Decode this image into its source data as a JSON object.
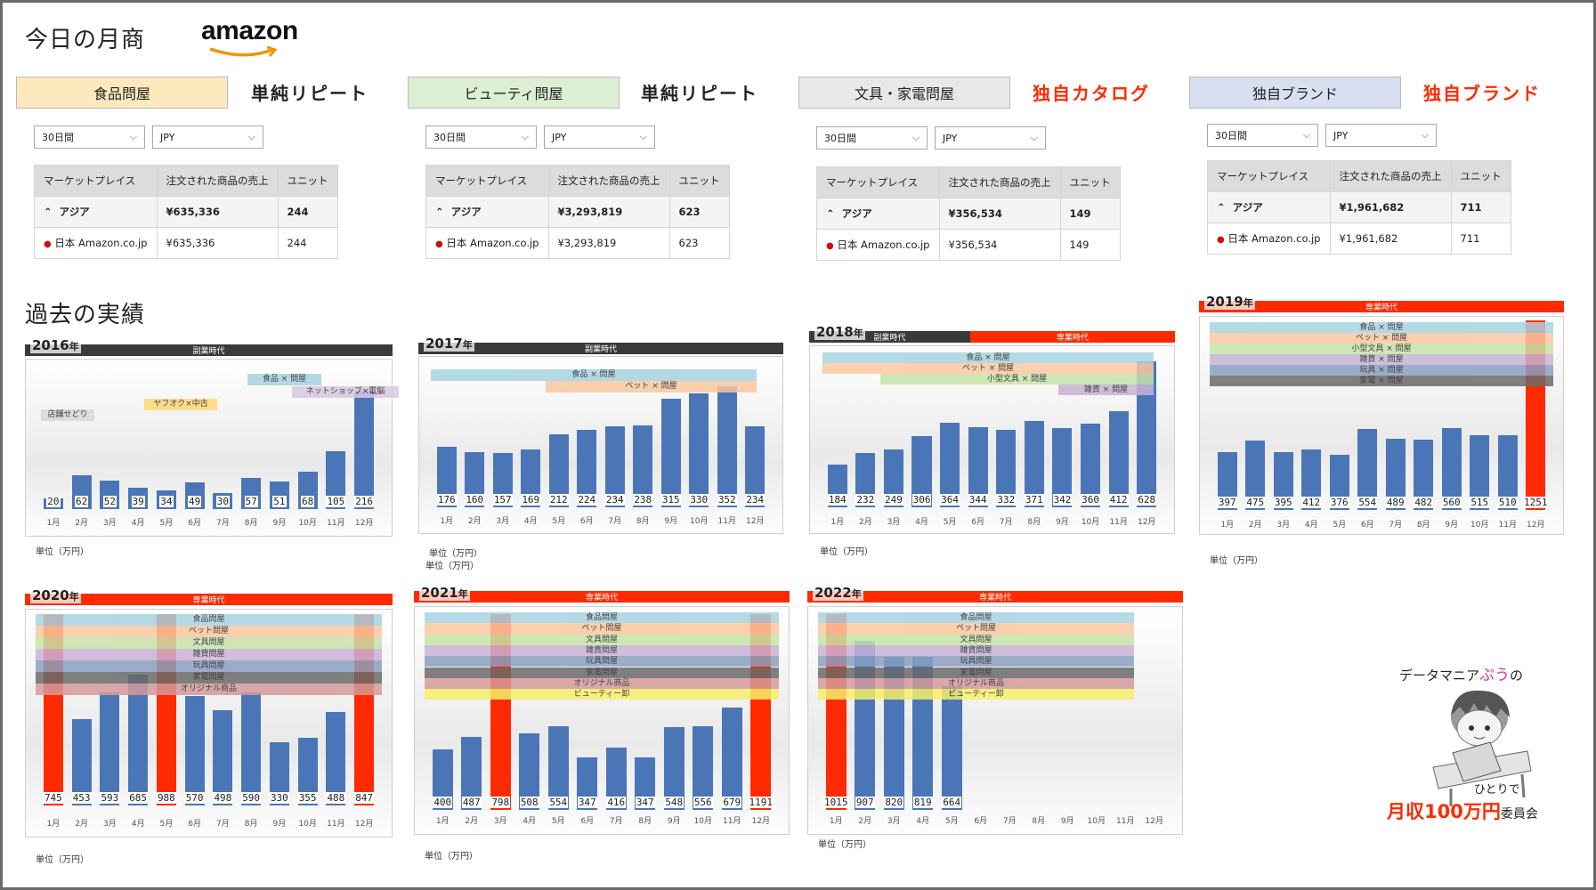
{
  "page": {
    "title": "今日の月商",
    "logo": "amazon",
    "past_title": "過去の実績"
  },
  "shops": [
    {
      "name": "食品問屋",
      "kind": "単純リピート",
      "kind_color": "#222222",
      "bg": "#fde9bd",
      "period": "30日間",
      "currency": "JPY",
      "header": {
        "marketplace": "マーケットプレイス",
        "sales": "注文された商品の売上",
        "units": "ユニット"
      },
      "region": {
        "name": "アジア",
        "sales": "¥635,336",
        "units": "244"
      },
      "market": {
        "name": "日本 Amazon.co.jp",
        "sales": "¥635,336",
        "units": "244"
      }
    },
    {
      "name": "ビューティ問屋",
      "kind": "単純リピート",
      "kind_color": "#222222",
      "bg": "#dcefd2",
      "period": "30日間",
      "currency": "JPY",
      "header": {
        "marketplace": "マーケットプレイス",
        "sales": "注文された商品の売上",
        "units": "ユニット"
      },
      "region": {
        "name": "アジア",
        "sales": "¥3,293,819",
        "units": "623"
      },
      "market": {
        "name": "日本 Amazon.co.jp",
        "sales": "¥3,293,819",
        "units": "623"
      }
    },
    {
      "name": "文具・家電問屋",
      "kind": "独自カタログ",
      "kind_color": "#ff2a00",
      "bg": "#e8e8e8",
      "period": "30日間",
      "currency": "JPY",
      "header": {
        "marketplace": "マーケットプレイス",
        "sales": "注文された商品の売上",
        "units": "ユニット"
      },
      "region": {
        "name": "アジア",
        "sales": "¥356,534",
        "units": "149"
      },
      "market": {
        "name": "日本 Amazon.co.jp",
        "sales": "¥356,534",
        "units": "149"
      }
    },
    {
      "name": "独自ブランド",
      "kind": "独自ブランド",
      "kind_color": "#ff2a00",
      "bg": "#d7dff0",
      "period": "30日間",
      "currency": "JPY",
      "header": {
        "marketplace": "マーケットプレイス",
        "sales": "注文された商品の売上",
        "units": "ユニット"
      },
      "region": {
        "name": "アジア",
        "sales": "¥1,961,682",
        "units": "711"
      },
      "market": {
        "name": "日本 Amazon.co.jp",
        "sales": "¥1,961,682",
        "units": "711"
      }
    }
  ],
  "colors": {
    "bar": "#4a76b8",
    "highlight": "#ff2a00",
    "side_banner": "#3a3a3a",
    "full_banner": "#ff2a00"
  },
  "chart_data": [
    {
      "type": "bar",
      "title": "2016",
      "title_suffix": "年",
      "categories": [
        "1月",
        "2月",
        "3月",
        "4月",
        "5月",
        "6月",
        "7月",
        "8月",
        "9月",
        "10月",
        "11月",
        "12月"
      ],
      "values": [
        20,
        62,
        52,
        39,
        34,
        49,
        30,
        57,
        51,
        68,
        105,
        216
      ],
      "highlight": [],
      "ymax": 250,
      "unit": "単位（万円）",
      "eras": [
        {
          "label": "副業時代",
          "color": "#3a3a3a"
        }
      ],
      "categories_bands": [
        {
          "label": "店舗せどり",
          "color": "#d9d9d9"
        },
        {
          "label": "ヤフオク×中古",
          "color": "#ffd97a"
        },
        {
          "label": "ネットショップ×電脳",
          "color": "#d9c9e0"
        },
        {
          "label": "食品 × 問屋",
          "color": "#a7d3e0"
        }
      ]
    },
    {
      "type": "bar",
      "title": "2017",
      "title_suffix": "年",
      "categories": [
        "1月",
        "2月",
        "3月",
        "4月",
        "5月",
        "6月",
        "7月",
        "8月",
        "9月",
        "10月",
        "11月",
        "12月"
      ],
      "values": [
        176,
        160,
        157,
        169,
        212,
        224,
        234,
        238,
        315,
        330,
        352,
        234
      ],
      "highlight": [],
      "ymax": 400,
      "unit": "単位（万円）",
      "eras": [
        {
          "label": "副業時代",
          "color": "#3a3a3a"
        }
      ],
      "categories_bands": [
        {
          "label": "食品 × 問屋",
          "color": "#a7d3e0"
        },
        {
          "label": "ペット × 問屋",
          "color": "#f9c8a0"
        }
      ]
    },
    {
      "type": "bar",
      "title": "2018",
      "title_suffix": "年",
      "categories": [
        "1月",
        "2月",
        "3月",
        "4月",
        "5月",
        "6月",
        "7月",
        "8月",
        "9月",
        "10月",
        "11月",
        "12月"
      ],
      "values": [
        184,
        232,
        249,
        306,
        364,
        344,
        332,
        371,
        342,
        360,
        412,
        628
      ],
      "highlight": [],
      "ymax": 650,
      "unit": "単位（万円）",
      "eras": [
        {
          "label": "副業時代",
          "color": "#3a3a3a"
        },
        {
          "label": "専業時代",
          "color": "#ff2a00"
        }
      ],
      "categories_bands": [
        {
          "label": "食品 × 問屋",
          "color": "#a7d3e0"
        },
        {
          "label": "ペット × 問屋",
          "color": "#f9c8a0"
        },
        {
          "label": "小型文具 × 問屋",
          "color": "#c6e3a8"
        },
        {
          "label": "雑貨 × 問屋",
          "color": "#c9b3d6"
        }
      ]
    },
    {
      "type": "bar",
      "title": "2019",
      "title_suffix": "年",
      "categories": [
        "1月",
        "2月",
        "3月",
        "4月",
        "5月",
        "6月",
        "7月",
        "8月",
        "9月",
        "10月",
        "11月",
        "12月"
      ],
      "values": [
        397,
        475,
        395,
        412,
        376,
        554,
        489,
        482,
        560,
        515,
        510,
        1251
      ],
      "highlight": [
        11
      ],
      "ymax": 1300,
      "unit": "単位（万円）",
      "eras": [
        {
          "label": "専業時代",
          "color": "#ff2a00"
        }
      ],
      "categories_bands": [
        {
          "label": "食品 × 問屋",
          "color": "#a7d3e0"
        },
        {
          "label": "ペット × 問屋",
          "color": "#f9c8a0"
        },
        {
          "label": "小型文具 × 問屋",
          "color": "#c6e3a8"
        },
        {
          "label": "雑貨 × 問屋",
          "color": "#c9b3d6"
        },
        {
          "label": "玩具 × 問屋",
          "color": "#8aa0c0"
        },
        {
          "label": "家電 × 問屋",
          "color": "#6a6a6a"
        }
      ]
    },
    {
      "type": "bar",
      "title": "2020",
      "title_suffix": "年",
      "categories": [
        "1月",
        "2月",
        "3月",
        "4月",
        "5月",
        "6月",
        "7月",
        "8月",
        "9月",
        "10月",
        "11月",
        "12月"
      ],
      "values": [
        745,
        453,
        593,
        685,
        988,
        570,
        498,
        590,
        330,
        355,
        488,
        847
      ],
      "highlight": [
        0,
        4,
        11
      ],
      "ymax": 1000,
      "unit": "単位（万円）",
      "eras": [
        {
          "label": "専業時代",
          "color": "#ff2a00"
        }
      ],
      "categories_bands": [
        {
          "label": "食品問屋",
          "color": "#a7d3e0"
        },
        {
          "label": "ペット問屋",
          "color": "#f9c8a0"
        },
        {
          "label": "文具問屋",
          "color": "#c6e3a8"
        },
        {
          "label": "雑貨問屋",
          "color": "#c9b3d6"
        },
        {
          "label": "玩具問屋",
          "color": "#8aa0c0"
        },
        {
          "label": "家電問屋",
          "color": "#6a6a6a"
        },
        {
          "label": "オリジナル商品",
          "color": "#d59a9a"
        }
      ]
    },
    {
      "type": "bar",
      "title": "2021",
      "title_suffix": "年",
      "categories": [
        "1月",
        "2月",
        "3月",
        "4月",
        "5月",
        "6月",
        "7月",
        "8月",
        "9月",
        "10月",
        "11月",
        "12月"
      ],
      "values": [
        400,
        487,
        798,
        508,
        554,
        347,
        416,
        347,
        548,
        556,
        679,
        1191
      ],
      "highlight": [
        2,
        11
      ],
      "ymax": 1300,
      "unit": "単位（万円）",
      "eras": [
        {
          "label": "専業時代",
          "color": "#ff2a00"
        }
      ],
      "categories_bands": [
        {
          "label": "食品問屋",
          "color": "#a7d3e0"
        },
        {
          "label": "ペット問屋",
          "color": "#f9c8a0"
        },
        {
          "label": "文具問屋",
          "color": "#c6e3a8"
        },
        {
          "label": "雑貨問屋",
          "color": "#c9b3d6"
        },
        {
          "label": "玩具問屋",
          "color": "#8aa0c0"
        },
        {
          "label": "家電問屋",
          "color": "#6a6a6a"
        },
        {
          "label": "オリジナル商品",
          "color": "#d59a9a"
        },
        {
          "label": "ビューティー卸",
          "color": "#f6ef6a"
        }
      ]
    },
    {
      "type": "bar",
      "title": "2022",
      "title_suffix": "年",
      "categories": [
        "1月",
        "2月",
        "3月",
        "4月",
        "5月",
        "6月",
        "7月",
        "8月",
        "9月",
        "10月",
        "11月",
        "12月"
      ],
      "values": [
        1015,
        907,
        820,
        819,
        664,
        null,
        null,
        null,
        null,
        null,
        null,
        null
      ],
      "highlight": [
        0
      ],
      "ymax": 1050,
      "unit": "単位（万円）",
      "eras": [
        {
          "label": "専業時代",
          "color": "#ff2a00"
        }
      ],
      "categories_bands": [
        {
          "label": "食品問屋",
          "color": "#a7d3e0"
        },
        {
          "label": "ペット問屋",
          "color": "#f9c8a0"
        },
        {
          "label": "文具問屋",
          "color": "#c6e3a8"
        },
        {
          "label": "雑貨問屋",
          "color": "#c9b3d6"
        },
        {
          "label": "玩具問屋",
          "color": "#8aa0c0"
        },
        {
          "label": "家電問屋",
          "color": "#6a6a6a"
        },
        {
          "label": "オリジナル商品",
          "color": "#d59a9a"
        },
        {
          "label": "ビューティー卸",
          "color": "#f6ef6a"
        }
      ]
    }
  ],
  "extra_unit_2017": "単位（万円）",
  "mascot": {
    "line1a": "データマニア",
    "line1b": "ぷう",
    "line1c": "の",
    "alone": "ひとりで",
    "big": "月収100万円",
    "small": "委員会"
  }
}
